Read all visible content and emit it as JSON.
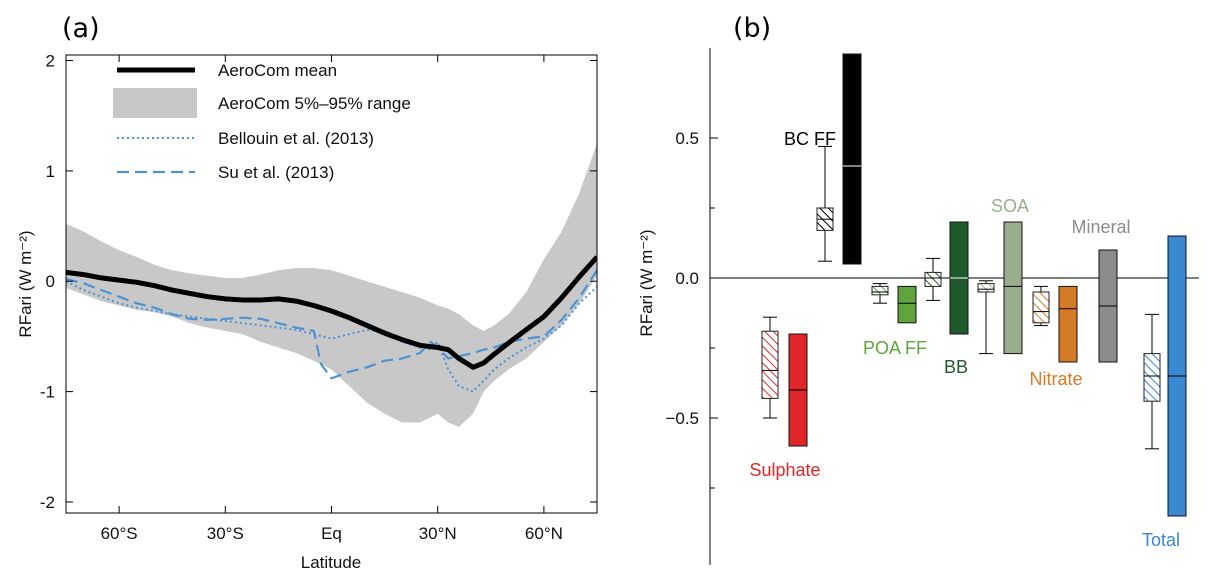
{
  "chart_data": [
    {
      "panel_label": "(a)",
      "type": "line",
      "xlabel": "Latitude",
      "ylabel": "RFari (W m⁻²)",
      "xlim": [
        -75,
        75
      ],
      "ylim": [
        -2.1,
        2.05
      ],
      "x_ticks": [
        {
          "value": -60,
          "label": "60°S"
        },
        {
          "value": -30,
          "label": "30°S"
        },
        {
          "value": 0,
          "label": "Eq"
        },
        {
          "value": 30,
          "label": "30°N"
        },
        {
          "value": 60,
          "label": "60°N"
        }
      ],
      "y_ticks": [
        {
          "value": 2,
          "label": "2"
        },
        {
          "value": 1,
          "label": "1"
        },
        {
          "value": 0,
          "label": "0"
        },
        {
          "value": -1,
          "label": "-1"
        },
        {
          "value": -2,
          "label": "-2"
        }
      ],
      "grid": false,
      "legend_position": "top",
      "legend": [
        {
          "label": "AeroCom mean",
          "style": "solid-thick",
          "color": "#000000"
        },
        {
          "label": "AeroCom 5%–95% range",
          "style": "band",
          "color": "#c8c8c8"
        },
        {
          "label": "Bellouin et al. (2013)",
          "style": "dotted",
          "color": "#4d92d4"
        },
        {
          "label": "Su et al. (2013)",
          "style": "dashed",
          "color": "#4d92d4"
        }
      ],
      "series": [
        {
          "name": "AeroCom mean",
          "x": [
            -75,
            -70,
            -65,
            -60,
            -55,
            -50,
            -45,
            -40,
            -35,
            -30,
            -25,
            -20,
            -15,
            -10,
            -5,
            0,
            5,
            10,
            15,
            20,
            25,
            30,
            33,
            36,
            40,
            43,
            46,
            50,
            55,
            60,
            65,
            70,
            75
          ],
          "y": [
            0.08,
            0.06,
            0.03,
            0.01,
            -0.01,
            -0.04,
            -0.08,
            -0.11,
            -0.14,
            -0.16,
            -0.17,
            -0.17,
            -0.16,
            -0.18,
            -0.22,
            -0.27,
            -0.33,
            -0.4,
            -0.47,
            -0.53,
            -0.58,
            -0.6,
            -0.62,
            -0.7,
            -0.78,
            -0.74,
            -0.66,
            -0.56,
            -0.44,
            -0.32,
            -0.15,
            0.04,
            0.22
          ]
        },
        {
          "name": "AeroCom 5%–95% range",
          "x": [
            -75,
            -70,
            -65,
            -60,
            -55,
            -50,
            -45,
            -40,
            -35,
            -30,
            -25,
            -20,
            -15,
            -10,
            -5,
            0,
            5,
            10,
            15,
            20,
            25,
            30,
            33,
            36,
            40,
            43,
            46,
            50,
            55,
            60,
            65,
            70,
            75
          ],
          "lower": [
            -0.06,
            -0.12,
            -0.18,
            -0.22,
            -0.26,
            -0.28,
            -0.32,
            -0.38,
            -0.42,
            -0.45,
            -0.48,
            -0.55,
            -0.6,
            -0.65,
            -0.72,
            -0.8,
            -0.95,
            -1.1,
            -1.2,
            -1.28,
            -1.28,
            -1.2,
            -1.28,
            -1.32,
            -1.2,
            -1.0,
            -0.9,
            -0.8,
            -0.7,
            -0.55,
            -0.4,
            -0.2,
            0.05
          ],
          "upper": [
            0.52,
            0.45,
            0.36,
            0.28,
            0.22,
            0.15,
            0.1,
            0.07,
            0.05,
            0.03,
            0.03,
            0.06,
            0.1,
            0.12,
            0.12,
            0.1,
            0.05,
            0.0,
            -0.05,
            -0.1,
            -0.15,
            -0.22,
            -0.25,
            -0.3,
            -0.4,
            -0.45,
            -0.4,
            -0.3,
            -0.1,
            0.2,
            0.45,
            0.8,
            1.25
          ]
        },
        {
          "name": "Bellouin et al. (2013)",
          "x": [
            -75,
            -70,
            -65,
            -60,
            -55,
            -50,
            -45,
            -40,
            -35,
            -30,
            -25,
            -20,
            -15,
            -10,
            -5,
            0,
            5,
            10,
            15,
            20,
            25,
            28,
            30,
            33,
            36,
            40,
            43,
            46,
            50,
            55,
            60,
            65,
            70,
            75
          ],
          "y": [
            0.0,
            -0.08,
            -0.14,
            -0.2,
            -0.24,
            -0.27,
            -0.3,
            -0.32,
            -0.34,
            -0.36,
            -0.38,
            -0.4,
            -0.42,
            -0.44,
            -0.48,
            -0.52,
            -0.48,
            -0.44,
            -0.46,
            -0.55,
            -0.6,
            -0.62,
            -0.55,
            -0.8,
            -0.95,
            -1.0,
            -0.9,
            -0.8,
            -0.7,
            -0.6,
            -0.52,
            -0.4,
            -0.2,
            -0.05
          ]
        },
        {
          "name": "Su et al. (2013)",
          "x": [
            -75,
            -70,
            -65,
            -60,
            -55,
            -50,
            -45,
            -40,
            -35,
            -30,
            -25,
            -20,
            -15,
            -10,
            -5,
            -3,
            0,
            5,
            10,
            15,
            20,
            25,
            28,
            30,
            33,
            36,
            40,
            43,
            46,
            50,
            55,
            60,
            65,
            70,
            75
          ],
          "y": [
            0.02,
            -0.02,
            -0.08,
            -0.14,
            -0.2,
            -0.24,
            -0.3,
            -0.34,
            -0.35,
            -0.34,
            -0.33,
            -0.34,
            -0.38,
            -0.42,
            -0.45,
            -0.75,
            -0.88,
            -0.82,
            -0.78,
            -0.72,
            -0.7,
            -0.65,
            -0.55,
            -0.6,
            -0.7,
            -0.68,
            -0.65,
            -0.62,
            -0.6,
            -0.55,
            -0.52,
            -0.5,
            -0.35,
            -0.15,
            0.1
          ]
        }
      ]
    },
    {
      "panel_label": "(b)",
      "type": "box",
      "ylabel": "RFari (W m⁻²)",
      "ylim": [
        -0.98,
        0.8
      ],
      "y_ticks": [
        {
          "value": 0.5,
          "label": "0.5"
        },
        {
          "value": 0.0,
          "label": "0.0"
        },
        {
          "value": -0.5,
          "label": "−0.5"
        }
      ],
      "zero_line": true,
      "grid": false,
      "groups": [
        {
          "name": "Sulphate",
          "color": "#e0262b",
          "hatched": {
            "whisker_low": -0.5,
            "q1": -0.43,
            "median": -0.33,
            "q3": -0.19,
            "whisker_high": -0.14
          },
          "solid": {
            "low": -0.6,
            "median": -0.4,
            "high": -0.2
          }
        },
        {
          "name": "BC FF",
          "color": "#000000",
          "hatched": {
            "whisker_low": 0.06,
            "q1": 0.17,
            "median": 0.21,
            "q3": 0.25,
            "whisker_high": 0.47
          },
          "solid": {
            "low": 0.05,
            "median": 0.4,
            "high": 0.8
          }
        },
        {
          "name": "POA FF",
          "color": "#5fa43d",
          "hatched": {
            "whisker_low": -0.09,
            "q1": -0.06,
            "median": -0.05,
            "q3": -0.03,
            "whisker_high": -0.02
          },
          "solid": {
            "low": -0.16,
            "median": -0.09,
            "high": -0.03
          }
        },
        {
          "name": "BB",
          "color": "#1f5a2c",
          "hatched": {
            "whisker_low": -0.08,
            "q1": -0.03,
            "median": 0.0,
            "q3": 0.02,
            "whisker_high": 0.07
          },
          "solid": {
            "low": -0.2,
            "median": -0.0,
            "high": 0.2
          }
        },
        {
          "name": "SOA",
          "color": "#9aae8f",
          "hatched": {
            "whisker_low": -0.27,
            "q1": -0.05,
            "median": -0.04,
            "q3": -0.02,
            "whisker_high": -0.01
          },
          "solid": {
            "low": -0.27,
            "median": -0.03,
            "high": 0.2
          }
        },
        {
          "name": "Nitrate",
          "color": "#d57a27",
          "hatched": {
            "whisker_low": -0.17,
            "q1": -0.16,
            "median": -0.12,
            "q3": -0.05,
            "whisker_high": -0.03
          },
          "solid": {
            "low": -0.3,
            "median": -0.11,
            "high": -0.03
          }
        },
        {
          "name": "Mineral",
          "color": "#8c8c8c",
          "hatched": null,
          "solid": {
            "low": -0.3,
            "median": -0.1,
            "high": 0.1
          }
        },
        {
          "name": "Total",
          "color": "#3a87d2",
          "hatched": {
            "whisker_low": -0.61,
            "q1": -0.44,
            "median": -0.35,
            "q3": -0.27,
            "whisker_high": -0.13
          },
          "solid": {
            "low": -0.85,
            "median": -0.35,
            "high": 0.15
          }
        }
      ]
    }
  ]
}
